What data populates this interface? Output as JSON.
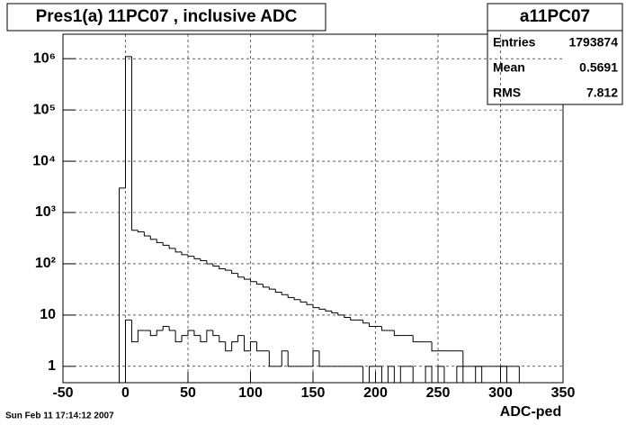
{
  "chart_data": {
    "type": "histogram",
    "title": "Pres1(a) 11PC07 , inclusive ADC",
    "x_label": "ADC-ped",
    "timestamp": "Sun Feb 11 17:14:12 2007",
    "log_y": true,
    "grid": true,
    "stats": {
      "title": "a11PC07",
      "rows": [
        [
          "Entries",
          1793874
        ],
        [
          "Mean",
          0.5691
        ],
        [
          "RMS",
          7.812
        ]
      ]
    },
    "xlim": [
      -50,
      350
    ],
    "ylim": [
      0.48,
      3000000
    ],
    "xticks": [
      -50,
      0,
      50,
      100,
      150,
      200,
      250,
      300,
      350
    ],
    "yticks": [
      1,
      10,
      {
        "value": 100,
        "label": "10²"
      },
      {
        "value": 1000,
        "label": "10³"
      },
      {
        "value": 10000,
        "label": "10⁴"
      },
      {
        "value": 100000,
        "label": "10⁵"
      },
      {
        "value": 1000000,
        "label": "10⁶"
      }
    ],
    "bins": [
      -50,
      -45,
      -40,
      -35,
      -30,
      -25,
      -20,
      -15,
      -10,
      -5,
      0,
      5,
      10,
      15,
      20,
      25,
      30,
      35,
      40,
      45,
      50,
      55,
      60,
      65,
      70,
      75,
      80,
      85,
      90,
      95,
      100,
      105,
      110,
      115,
      120,
      125,
      130,
      135,
      140,
      145,
      150,
      155,
      160,
      165,
      170,
      175,
      180,
      185,
      190,
      195,
      200,
      205,
      210,
      215,
      220,
      225,
      230,
      235,
      240,
      245,
      250,
      255,
      260,
      265,
      270,
      275,
      280,
      285,
      290,
      295,
      300,
      305,
      310,
      315,
      320,
      325,
      330,
      335,
      340,
      345,
      350
    ],
    "series": [
      {
        "color": "#000000",
        "values": [
          0,
          0,
          0,
          0,
          0,
          0,
          0,
          0,
          0,
          3000,
          1100000,
          450,
          420,
          350,
          300,
          260,
          230,
          200,
          170,
          150,
          140,
          125,
          115,
          100,
          90,
          80,
          75,
          65,
          55,
          50,
          45,
          40,
          35,
          32,
          28,
          25,
          22,
          20,
          18,
          16,
          14,
          13,
          12,
          11,
          10,
          9,
          8,
          8,
          7,
          6,
          6,
          5,
          5,
          4,
          4,
          4,
          3,
          3,
          3,
          2,
          2,
          2,
          2,
          2,
          1,
          1,
          1,
          1,
          1,
          1,
          1,
          1,
          1,
          0,
          0,
          0,
          0,
          0,
          0,
          0
        ]
      },
      {
        "color": "#000000",
        "values": [
          0,
          0,
          0,
          0,
          0,
          0,
          0,
          0,
          0,
          0,
          8,
          3,
          5,
          5,
          4,
          5,
          6,
          5,
          3,
          4,
          5,
          4,
          3,
          5,
          4,
          3,
          2,
          3,
          4,
          2,
          3,
          2,
          2,
          1,
          1,
          2,
          1,
          1,
          1,
          1,
          2,
          1,
          1,
          1,
          1,
          1,
          1,
          1,
          0,
          1,
          1,
          0,
          1,
          0,
          1,
          1,
          0,
          0,
          1,
          0,
          1,
          0,
          0,
          1,
          0,
          0,
          1,
          0,
          0,
          0,
          1,
          0,
          0,
          0,
          0,
          0,
          0,
          0,
          0,
          0
        ]
      }
    ]
  }
}
